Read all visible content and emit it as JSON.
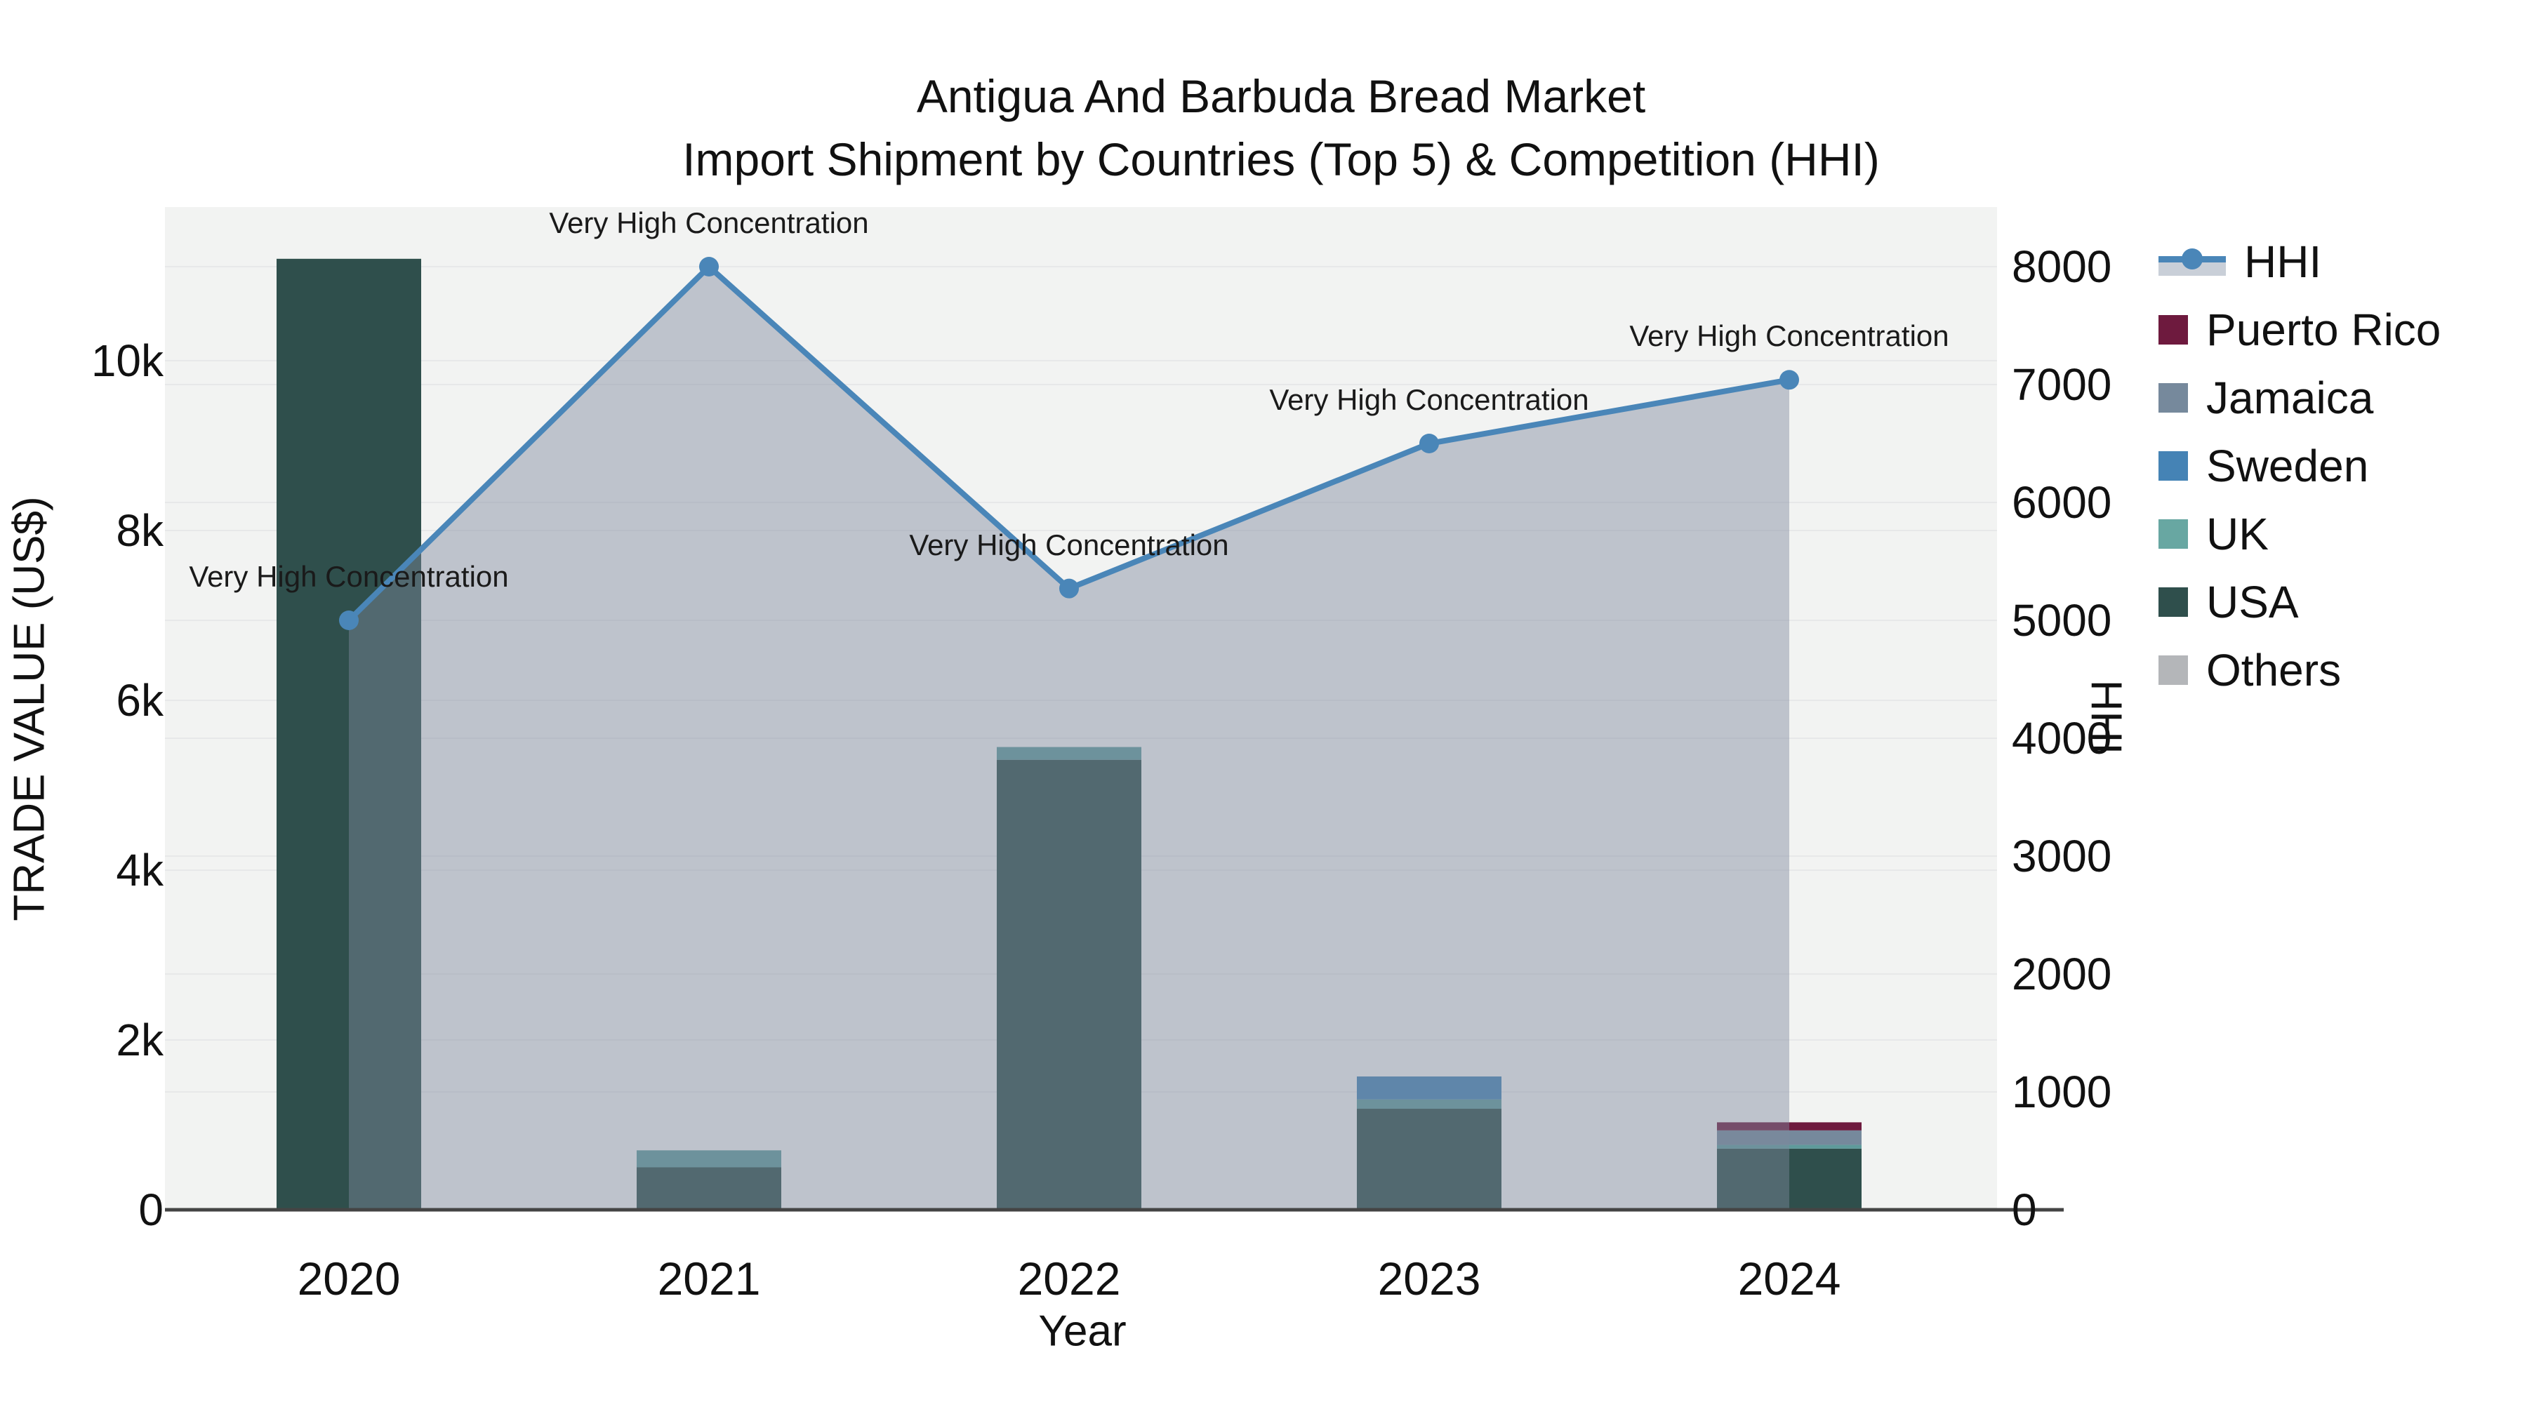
{
  "title": {
    "line1": "Antigua And Barbuda Bread Market",
    "line2": "Import Shipment by Countries (Top 5) & Competition (HHI)"
  },
  "colors": {
    "page_bg": "#ffffff",
    "plot_bg": "#f2f3f2",
    "gridline": "#e7e8e9",
    "axis_line": "#444444",
    "text": "#111111",
    "hhi_line": "#4a86b8",
    "hhi_area": "rgba(126,137,158,0.45)",
    "legend_band": "#c9cfd8"
  },
  "legend": {
    "items": [
      {
        "label": "HHI",
        "kind": "line",
        "color": "#4a86b8"
      },
      {
        "label": "Puerto Rico",
        "kind": "swatch",
        "color": "#6e1a3e"
      },
      {
        "label": "Jamaica",
        "kind": "swatch",
        "color": "#76899c"
      },
      {
        "label": "Sweden",
        "kind": "swatch",
        "color": "#4583b5"
      },
      {
        "label": "UK",
        "kind": "swatch",
        "color": "#68a7a2"
      },
      {
        "label": "USA",
        "kind": "swatch",
        "color": "#2f4f4c"
      },
      {
        "label": "Others",
        "kind": "swatch",
        "color": "#b4b6b9"
      }
    ]
  },
  "chart_data": {
    "type": "combo-stacked-bar-line",
    "title": "Antigua And Barbuda Bread Market — Import Shipment by Countries (Top 5) & Competition (HHI)",
    "categories": [
      "2020",
      "2021",
      "2022",
      "2023",
      "2024"
    ],
    "series": [
      {
        "name": "USA",
        "color": "#2f4f4c",
        "values": [
          11200,
          500,
          5300,
          1190,
          720
        ]
      },
      {
        "name": "UK",
        "color": "#5f9a9b",
        "values": [
          0,
          200,
          150,
          110,
          45
        ]
      },
      {
        "name": "Sweden",
        "color": "#4583b5",
        "values": [
          0,
          0,
          0,
          270,
          0
        ]
      },
      {
        "name": "Jamaica",
        "color": "#76899c",
        "values": [
          0,
          0,
          0,
          0,
          170
        ]
      },
      {
        "name": "Puerto Rico",
        "color": "#6e1a3e",
        "values": [
          0,
          0,
          0,
          0,
          95
        ]
      },
      {
        "name": "Others",
        "color": "#b4b6b9",
        "values": [
          0,
          0,
          0,
          0,
          0
        ]
      }
    ],
    "line": {
      "name": "HHI",
      "color": "#4a86b8",
      "area_fill": "rgba(126,137,158,0.45)",
      "values": [
        5000,
        8000,
        5270,
        6500,
        7040
      ],
      "annotations": [
        "Very High Concentration",
        "Very High Concentration",
        "Very High Concentration",
        "Very High Concentration",
        "Very High Concentration"
      ]
    },
    "y_left": {
      "label": "TRADE VALUE (US$)",
      "range": [
        0,
        11810
      ],
      "ticks": [
        {
          "label": "0",
          "value": 0
        },
        {
          "label": "2k",
          "value": 2000
        },
        {
          "label": "4k",
          "value": 4000
        },
        {
          "label": "6k",
          "value": 6000
        },
        {
          "label": "8k",
          "value": 8000
        },
        {
          "label": "10k",
          "value": 10000
        }
      ]
    },
    "y_right": {
      "label": "HHI",
      "range": [
        0,
        8500
      ],
      "ticks": [
        {
          "label": "0",
          "value": 0
        },
        {
          "label": "1000",
          "value": 1000
        },
        {
          "label": "2000",
          "value": 2000
        },
        {
          "label": "3000",
          "value": 3000
        },
        {
          "label": "4000",
          "value": 4000
        },
        {
          "label": "5000",
          "value": 5000
        },
        {
          "label": "6000",
          "value": 6000
        },
        {
          "label": "7000",
          "value": 7000
        },
        {
          "label": "8000",
          "value": 8000
        }
      ]
    },
    "x_label": "Year",
    "grid": true,
    "legend_position": "right"
  }
}
